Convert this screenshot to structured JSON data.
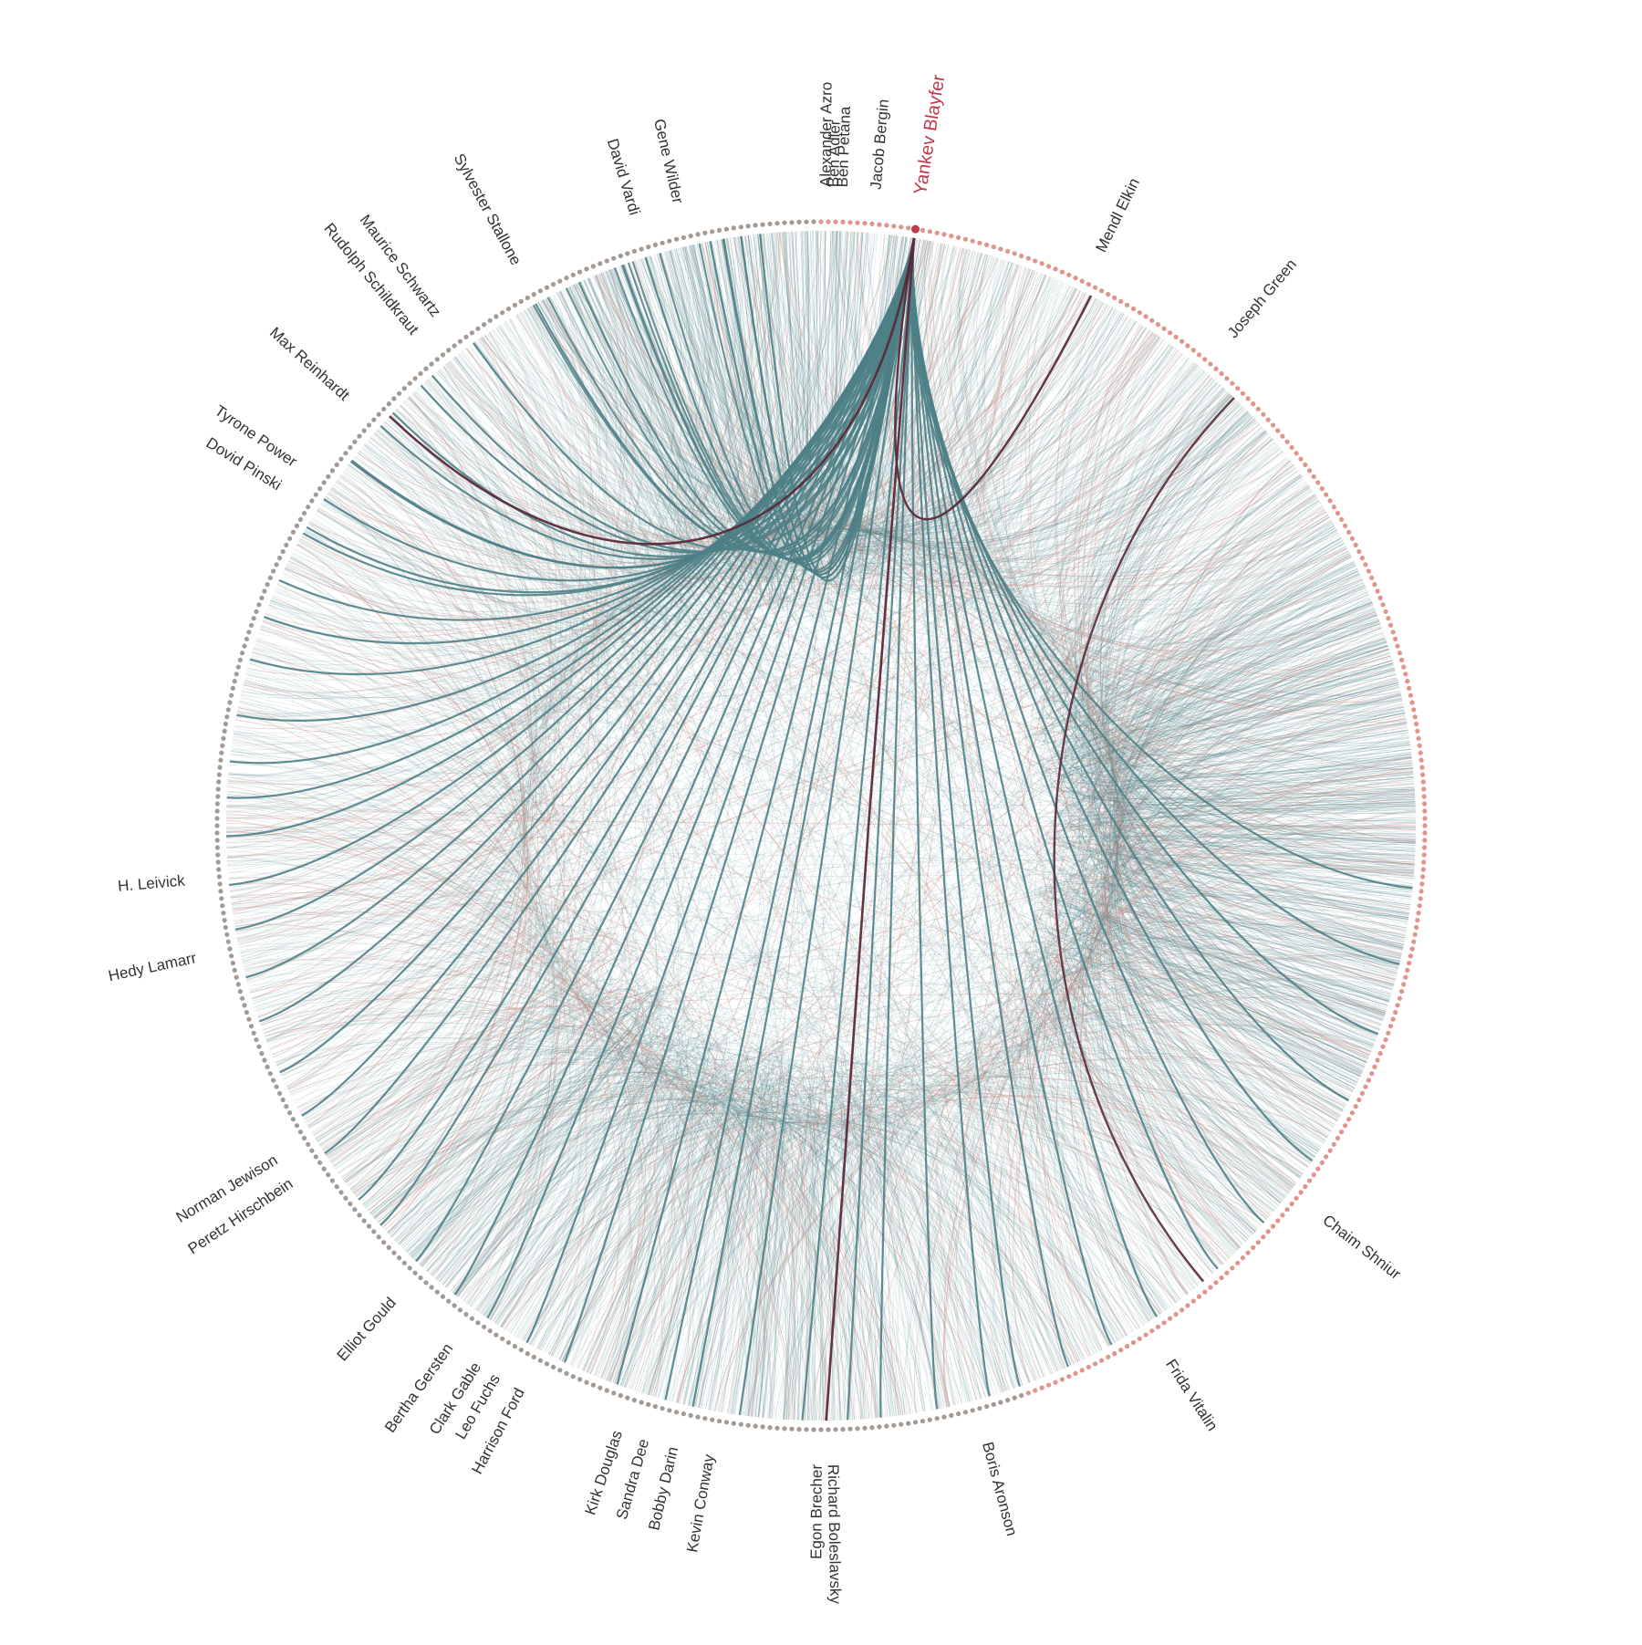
{
  "diagram": {
    "type": "hierarchical edge bundling / chord network",
    "highlighted_node": "Yankev Blayfer",
    "colors": {
      "edge_main": "#4e7f86",
      "edge_red": "#c98a80",
      "edge_highlight": "#5a2a3a",
      "ring_grey": "#a39a94",
      "ring_salmon": "#e0948a",
      "highlight_text": "#c0394b"
    },
    "labels": [
      {
        "id": "alexander-azro",
        "text": "Alexander Azro",
        "angle": 0.5
      },
      {
        "id": "ben-adler",
        "text": "Ben Adler",
        "angle": 1.2
      },
      {
        "id": "ben-petana",
        "text": "Ben Petana",
        "angle": 2.0
      },
      {
        "id": "jacob-bergin",
        "text": "Jacob Bergin",
        "angle": 5.0
      },
      {
        "id": "yankev-blayfer",
        "text": "Yankev Blayfer",
        "angle": 9.0,
        "highlight": true
      },
      {
        "id": "mendl-elkin",
        "text": "Mendl Elkin",
        "angle": 26.0
      },
      {
        "id": "joseph-green",
        "text": "Joseph Green",
        "angle": 40.0
      },
      {
        "id": "chaim-shniur",
        "text": "Chaim Shniur",
        "angle": 128.0
      },
      {
        "id": "frida-vitalin",
        "text": "Frida Vitalin",
        "angle": 147.0
      },
      {
        "id": "boris-aronson",
        "text": "Boris Aronson",
        "angle": 165.0
      },
      {
        "id": "richard-boleslavsky",
        "text": "Richard Boleslavsky",
        "angle": 179.0
      },
      {
        "id": "egon-brecher",
        "text": "Egon Brecher",
        "angle": 180.3
      },
      {
        "id": "kevin-conway",
        "text": "Kevin Conway",
        "angle": 190.0
      },
      {
        "id": "bobby-darin",
        "text": "Bobby Darin",
        "angle": 193.3
      },
      {
        "id": "sandra-dee",
        "text": "Sandra Dee",
        "angle": 196.0
      },
      {
        "id": "kirk-douglas",
        "text": "Kirk Douglas",
        "angle": 198.5
      },
      {
        "id": "harrison-ford",
        "text": "Harrison Ford",
        "angle": 208.0
      },
      {
        "id": "leo-fuchs",
        "text": "Leo Fuchs",
        "angle": 210.5
      },
      {
        "id": "clark-gable",
        "text": "Clark Gable",
        "angle": 212.5
      },
      {
        "id": "bertha-gersten",
        "text": "Bertha Gersten",
        "angle": 215.5
      },
      {
        "id": "elliot-gould",
        "text": "Elliot Gould",
        "angle": 222.0
      },
      {
        "id": "peretz-hirschbein",
        "text": "Peretz Hirschbein",
        "angle": 236.0
      },
      {
        "id": "norman-jewison",
        "text": "Norman Jewison",
        "angle": 238.5
      },
      {
        "id": "hedy-lamarr",
        "text": "Hedy Lamarr",
        "angle": 258.0
      },
      {
        "id": "h-leivick",
        "text": "H. Leivick",
        "angle": 265.0
      },
      {
        "id": "dovid-pinski",
        "text": "Dovid Pinski",
        "angle": 302.0
      },
      {
        "id": "tyrone-power",
        "text": "Tyrone Power",
        "angle": 304.5
      },
      {
        "id": "max-reinhardt",
        "text": "Max Reinhardt",
        "angle": 312.0
      },
      {
        "id": "rudolph-schildkraut",
        "text": "Rudolph Schildkraut",
        "angle": 320.5
      },
      {
        "id": "maurice-schwartz",
        "text": "Maurice Schwartz",
        "angle": 323.0
      },
      {
        "id": "sylvester-stallone",
        "text": "Sylvester Stallone",
        "angle": 331.5
      },
      {
        "id": "david-vardi",
        "text": "David Vardi",
        "angle": 343.0
      },
      {
        "id": "gene-wilder",
        "text": "Gene Wilder",
        "angle": 347.0
      }
    ]
  }
}
